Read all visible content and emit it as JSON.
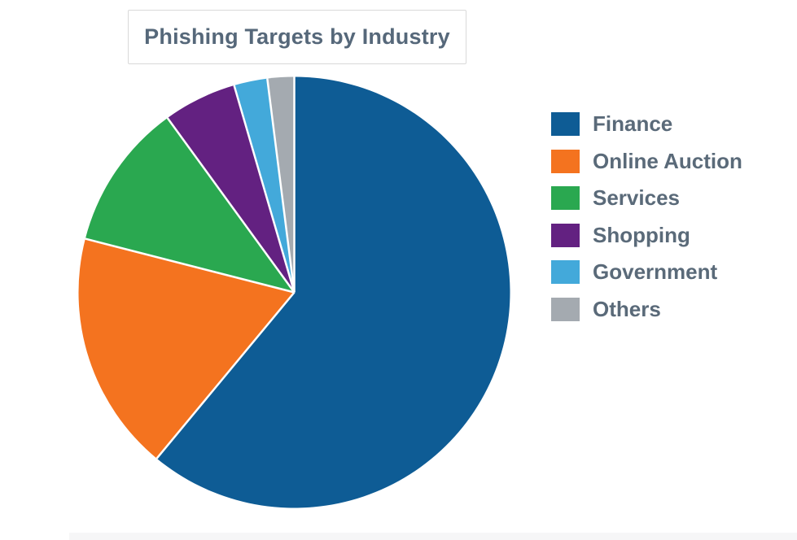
{
  "window": {
    "background": "#ffffff",
    "bottom_strip_color": "#f6f6f7"
  },
  "chart": {
    "title_box_border_color": "#d9d9d9",
    "title_color": "#56687a",
    "legend_text_color": "#5a6a79"
  },
  "chart_data": {
    "type": "pie",
    "title": "Phishing Targets by Industry",
    "categories": [
      "Finance",
      "Online Auction",
      "Services",
      "Shopping",
      "Government",
      "Others"
    ],
    "values": [
      61,
      18,
      11,
      5.5,
      2.5,
      2
    ],
    "colors": [
      "#0e5c95",
      "#f4731f",
      "#2aa850",
      "#632181",
      "#43a9da",
      "#a4aab0"
    ],
    "start_angle_deg": 0,
    "direction": "clockwise",
    "slice_separator_color": "#ffffff",
    "legend_position": "right",
    "data_labels": "none",
    "axes": "none"
  }
}
